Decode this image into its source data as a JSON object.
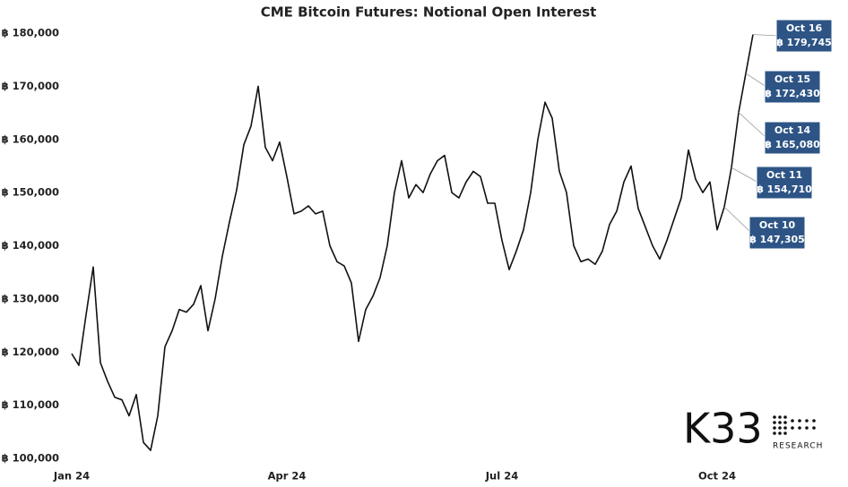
{
  "chart_data": {
    "type": "line",
    "title": "CME Bitcoin Futures: Notional Open Interest",
    "categories": [
      "Jan 24",
      null,
      null,
      null,
      null,
      null,
      null,
      null,
      null,
      null,
      null,
      null,
      null,
      null,
      null,
      null,
      null,
      null,
      null,
      null,
      null,
      null,
      null,
      null,
      null,
      null,
      null,
      null,
      null,
      null,
      "Apr 24",
      null,
      null,
      null,
      null,
      null,
      null,
      null,
      null,
      null,
      null,
      null,
      null,
      null,
      null,
      null,
      null,
      null,
      null,
      null,
      null,
      null,
      null,
      null,
      null,
      null,
      null,
      null,
      null,
      null,
      "Jul 24",
      null,
      null,
      null,
      null,
      null,
      null,
      null,
      null,
      null,
      null,
      null,
      null,
      null,
      null,
      null,
      null,
      null,
      null,
      null,
      null,
      null,
      null,
      null,
      null,
      null,
      null,
      null,
      null,
      null,
      "Oct 24",
      null,
      null,
      null,
      null,
      null
    ],
    "series": [
      {
        "color": "#111111",
        "values": [
          119700,
          117500,
          127000,
          136000,
          118000,
          114500,
          111500,
          111000,
          108000,
          112000,
          103000,
          101500,
          108000,
          121000,
          124000,
          128000,
          127500,
          129000,
          132500,
          124000,
          130000,
          138000,
          144500,
          150500,
          159000,
          162500,
          170000,
          158500,
          156000,
          159500,
          153000,
          146000,
          146500,
          147500,
          146000,
          146500,
          140000,
          137000,
          136200,
          133000,
          122000,
          128000,
          130500,
          134000,
          140000,
          150000,
          156000,
          149000,
          151500,
          150000,
          153500,
          156000,
          157000,
          150000,
          149000,
          152000,
          154000,
          153000,
          148000,
          148000,
          141000,
          135500,
          139000,
          143000,
          150000,
          160000,
          167000,
          164000,
          154000,
          150000,
          140000,
          137000,
          137500,
          136500,
          139000,
          144000,
          146500,
          152000,
          155000,
          147000,
          143500,
          140000,
          137500,
          141000,
          145000,
          149000,
          158000,
          152500,
          150000,
          152000,
          143000,
          147305,
          154710,
          165080,
          172430,
          179745
        ],
        "value_labels": [
          null,
          null,
          null,
          null,
          null,
          null,
          null,
          null,
          null,
          null,
          null,
          null,
          null,
          null,
          null,
          null,
          null,
          null,
          null,
          null,
          null,
          null,
          null,
          null,
          null,
          null,
          null,
          null,
          null,
          null,
          null,
          null,
          null,
          null,
          null,
          null,
          null,
          null,
          null,
          null,
          null,
          null,
          null,
          null,
          null,
          null,
          null,
          null,
          null,
          null,
          null,
          null,
          null,
          null,
          null,
          null,
          null,
          null,
          null,
          null,
          null,
          null,
          null,
          null,
          null,
          null,
          null,
          null,
          null,
          null,
          null,
          null,
          null,
          null,
          null,
          null,
          null,
          null,
          null,
          null,
          null,
          null,
          null,
          null,
          null,
          null,
          null,
          null,
          null,
          null,
          null,
          "฿ 147,305",
          "฿ 154,710",
          "฿ 165,080",
          "฿ 172,430",
          "฿ 179,745"
        ],
        "callout_dates": [
          null,
          null,
          null,
          null,
          null,
          null,
          null,
          null,
          null,
          null,
          null,
          null,
          null,
          null,
          null,
          null,
          null,
          null,
          null,
          null,
          null,
          null,
          null,
          null,
          null,
          null,
          null,
          null,
          null,
          null,
          null,
          null,
          null,
          null,
          null,
          null,
          null,
          null,
          null,
          null,
          null,
          null,
          null,
          null,
          null,
          null,
          null,
          null,
          null,
          null,
          null,
          null,
          null,
          null,
          null,
          null,
          null,
          null,
          null,
          null,
          null,
          null,
          null,
          null,
          null,
          null,
          null,
          null,
          null,
          null,
          null,
          null,
          null,
          null,
          null,
          null,
          null,
          null,
          null,
          null,
          null,
          null,
          null,
          null,
          null,
          null,
          null,
          null,
          null,
          null,
          null,
          "Oct 10",
          "Oct 11",
          "Oct 14",
          "Oct 15",
          "Oct 16"
        ]
      }
    ],
    "callout_color": "#2d5485",
    "ylim": [
      100000,
      180000
    ],
    "yticks": [
      {
        "value": 100000,
        "label": "฿ 100,000"
      },
      {
        "value": 110000,
        "label": "฿ 110,000"
      },
      {
        "value": 120000,
        "label": "฿ 120,000"
      },
      {
        "value": 130000,
        "label": "฿ 130,000"
      },
      {
        "value": 140000,
        "label": "฿ 140,000"
      },
      {
        "value": 150000,
        "label": "฿ 150,000"
      },
      {
        "value": 160000,
        "label": "฿ 160,000"
      },
      {
        "value": 170000,
        "label": "฿ 170,000"
      },
      {
        "value": 180000,
        "label": "฿ 180,000"
      }
    ],
    "grid": false,
    "brand": "K33",
    "brand_subtitle": "RESEARCH"
  }
}
